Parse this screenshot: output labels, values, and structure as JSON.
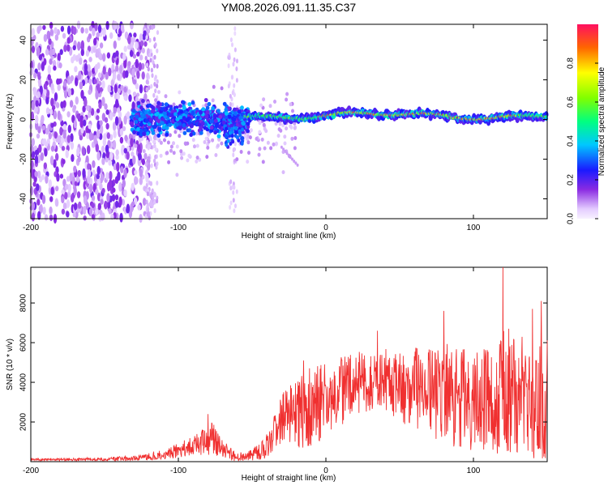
{
  "title": "YM08.2026.091.11.35.C37",
  "chart_data": [
    {
      "type": "heatmap",
      "xlabel": "Height of straight line (km)",
      "ylabel": "Frequency (Hz)",
      "xlim": [
        -200,
        150
      ],
      "ylim": [
        -50,
        48
      ],
      "xticks": [
        -200,
        -100,
        0,
        100
      ],
      "yticks": [
        -40,
        -20,
        0,
        20,
        40
      ],
      "colorbar": {
        "label": "Normalized spectral amplitude",
        "range": [
          0,
          1
        ],
        "ticks": [
          0.0,
          0.2,
          0.4,
          0.6,
          0.8
        ],
        "tick_labels": [
          "0.0",
          "0.2",
          "0.4",
          "0.6",
          "0.8"
        ]
      },
      "regions": [
        {
          "x": [
            -200,
            -120
          ],
          "description": "broadband scattered noise",
          "level": 0.1
        },
        {
          "x": [
            -130,
            -55
          ],
          "y_center": 0,
          "y_spread": 15,
          "level": 0.3
        },
        {
          "x": [
            -55,
            150
          ],
          "y_center": 2,
          "y_spread": 3,
          "level": 0.6
        },
        {
          "x": [
            0,
            130
          ],
          "y_center": 2,
          "peak_level": 0.95
        }
      ]
    },
    {
      "type": "line",
      "xlabel": "Height of straight line (km)",
      "ylabel": "SNR (10 * v/v)",
      "xlim": [
        -200,
        150
      ],
      "ylim": [
        0,
        9800
      ],
      "xticks": [
        -200,
        -100,
        0,
        100
      ],
      "yticks": [
        2000,
        4000,
        6000,
        8000
      ],
      "color": "#f03030",
      "envelope": {
        "x": [
          -200,
          -150,
          -125,
          -110,
          -95,
          -85,
          -78,
          -70,
          -62,
          -55,
          -45,
          -38,
          -33,
          -28,
          -22,
          -15,
          -5,
          5,
          20,
          35,
          45,
          55,
          70,
          80,
          90,
          100,
          110,
          118,
          122,
          130,
          140,
          150
        ],
        "mid": [
          100,
          120,
          200,
          350,
          700,
          900,
          1200,
          700,
          300,
          200,
          500,
          900,
          1800,
          2200,
          2600,
          2600,
          3000,
          3300,
          3900,
          4200,
          4000,
          3700,
          3600,
          3400,
          3200,
          3100,
          3000,
          3200,
          3600,
          3400,
          3200,
          3000
        ],
        "amp": [
          60,
          80,
          150,
          250,
          450,
          600,
          900,
          500,
          300,
          200,
          400,
          700,
          1200,
          1500,
          1800,
          2000,
          2000,
          1900,
          1600,
          1500,
          1700,
          2000,
          2200,
          2600,
          2500,
          2600,
          2700,
          2900,
          3300,
          3000,
          3200,
          3200
        ]
      },
      "peaks": [
        {
          "x": -80,
          "y": 2400
        },
        {
          "x": -15,
          "y": 5100
        },
        {
          "x": 35,
          "y": 6600
        },
        {
          "x": 80,
          "y": 7600
        },
        {
          "x": 120,
          "y": 9800
        },
        {
          "x": 140,
          "y": 7700
        },
        {
          "x": 146,
          "y": 8100
        }
      ]
    }
  ]
}
